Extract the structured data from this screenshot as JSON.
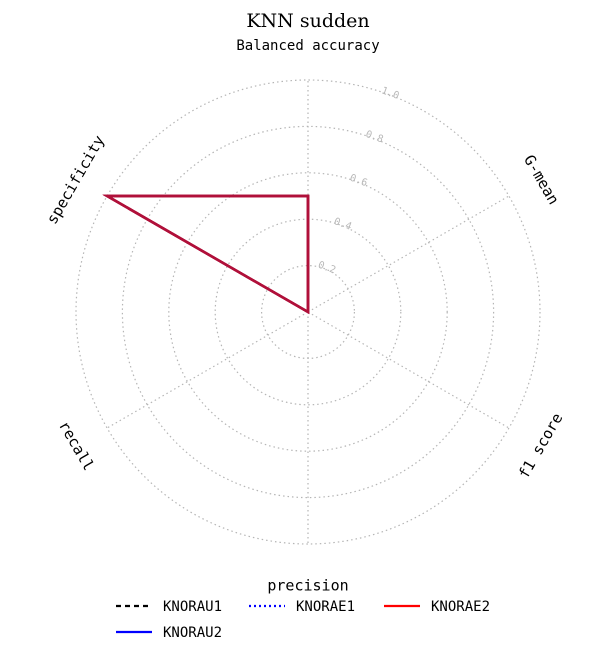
{
  "chart_data": {
    "type": "radar",
    "title": "KNN sudden",
    "axes": [
      "Balanced accuracy",
      "G-mean",
      "f1 score",
      "precision",
      "recall",
      "specificity"
    ],
    "rlim": [
      0,
      1.0
    ],
    "radial_ticks": [
      "0.2",
      "0.4",
      "0.6",
      "0.8",
      "1.0"
    ],
    "radial_tick_values": [
      0.2,
      0.4,
      0.6,
      0.8,
      1.0
    ],
    "grid": true,
    "legend_placement": "bottom",
    "series": [
      {
        "name": "KNORAU1",
        "values": [
          0.5,
          0.0,
          0.0,
          0.0,
          0.0,
          1.0
        ],
        "color": "#000000",
        "linestyle": "dashed"
      },
      {
        "name": "KNORAE1",
        "values": [
          0.5,
          0.0,
          0.0,
          0.0,
          0.0,
          1.0
        ],
        "color": "#0000ff",
        "linestyle": "dotted"
      },
      {
        "name": "KNORAE2",
        "values": [
          0.5,
          0.0,
          0.0,
          0.0,
          0.0,
          1.0
        ],
        "color": "#ff0000",
        "linestyle": "solid"
      },
      {
        "name": "KNORAU2",
        "values": [
          0.5,
          0.0,
          0.0,
          0.0,
          0.0,
          1.0
        ],
        "color": "#0000ff",
        "linestyle": "solid"
      }
    ],
    "rendered_overlap_color": "#b0103a"
  }
}
